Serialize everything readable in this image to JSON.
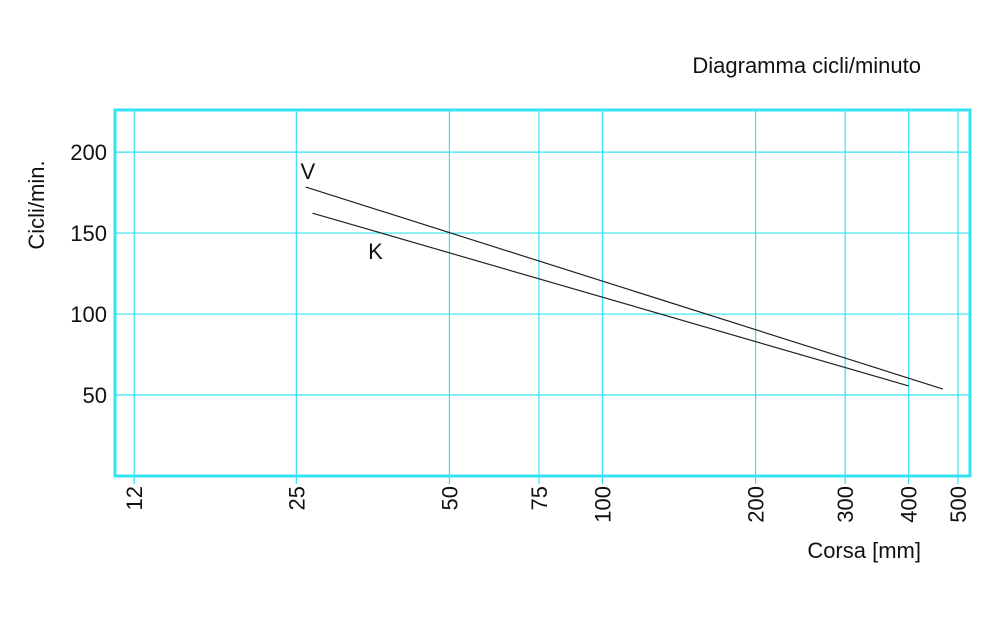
{
  "chart_data": {
    "type": "line",
    "title": "Diagramma cicli/minuto",
    "x_label": "Corsa [mm]",
    "y_label": "Cicli/min.",
    "x_log": true,
    "grid": true,
    "grid_color": "#33e3f2",
    "xlim": [
      11,
      528
    ],
    "xticks": [
      12,
      25,
      50,
      75,
      100,
      200,
      300,
      400,
      500
    ],
    "ylim": [
      0,
      226
    ],
    "yticks": [
      50,
      100,
      150,
      200
    ],
    "series": [
      {
        "name": "V",
        "color": "#222222",
        "x": [
          26.1,
          467
        ],
        "values": [
          178.4,
          53.7
        ]
      },
      {
        "name": "K",
        "color": "#222222",
        "x": [
          26.9,
          400
        ],
        "values": [
          162.3,
          55.6
        ]
      }
    ]
  }
}
